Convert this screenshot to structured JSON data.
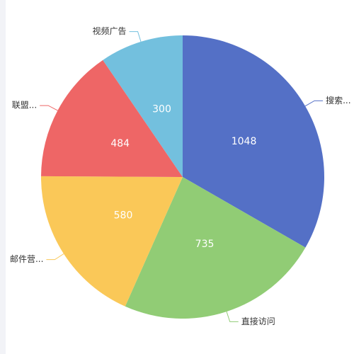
{
  "chart_data": {
    "type": "pie",
    "categories": [
      "搜索...",
      "直接访问",
      "邮件营...",
      "联盟...",
      "视频广告"
    ],
    "values": [
      1048,
      735,
      580,
      484,
      300
    ],
    "colors": [
      "#5470c6",
      "#91cc75",
      "#fac858",
      "#ee6666",
      "#73c0de"
    ]
  }
}
